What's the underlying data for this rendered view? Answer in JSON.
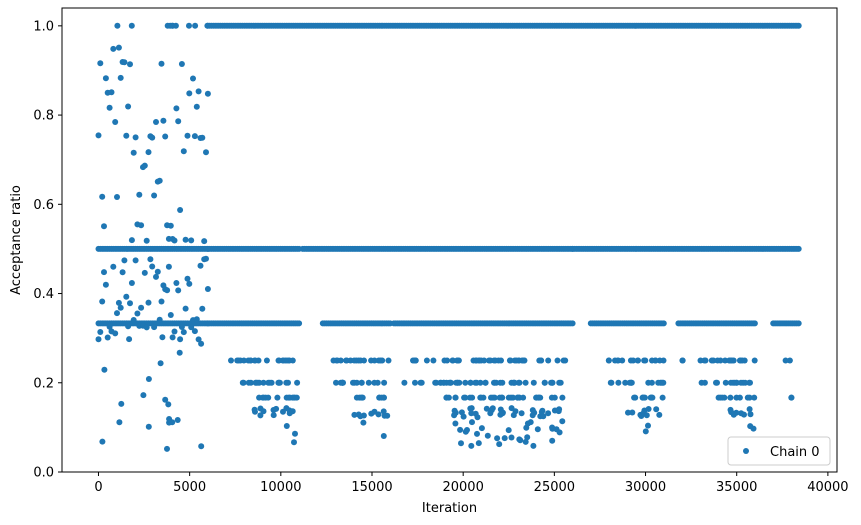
{
  "chart_data": {
    "type": "scatter",
    "xlabel": "Iteration",
    "ylabel": "Acceptance ratio",
    "xlim": [
      -2000,
      40500
    ],
    "ylim": [
      0,
      1.04
    ],
    "xticks": [
      0,
      5000,
      10000,
      15000,
      20000,
      25000,
      30000,
      35000,
      40000
    ],
    "xtick_labels": [
      "0",
      "5000",
      "10000",
      "15000",
      "20000",
      "25000",
      "30000",
      "35000",
      "40000"
    ],
    "yticks": [
      0.0,
      0.2,
      0.4,
      0.6,
      0.8,
      1.0
    ],
    "ytick_labels": [
      "0.0",
      "0.2",
      "0.4",
      "0.6",
      "0.8",
      "1.0"
    ],
    "grid": false,
    "legend_position": "lower-right",
    "color": "#1f77b4",
    "series": [
      {
        "name": "Chain 0",
        "marker": "circle",
        "x_range": [
          0,
          38400
        ],
        "segments": [
          {
            "x": [
              0,
              6000
            ],
            "y": [
              1.0
            ],
            "density": "sparse"
          },
          {
            "x": [
              6000,
              38400
            ],
            "y": [
              1.0
            ],
            "density": "dense"
          },
          {
            "x": [
              0,
              6000
            ],
            "y": [
              0.5
            ],
            "density": "dense"
          },
          {
            "x": [
              6000,
              11000
            ],
            "y": [
              0.5
            ],
            "density": "dense"
          },
          {
            "x": [
              11200,
              26000
            ],
            "y": [
              0.5
            ],
            "density": "dense"
          },
          {
            "x": [
              26000,
              38400
            ],
            "y": [
              0.5
            ],
            "density": "dense"
          },
          {
            "x": [
              0,
              6000
            ],
            "y": [
              0.333
            ],
            "density": "dense"
          },
          {
            "x": [
              6000,
              11000
            ],
            "y": [
              0.333
            ],
            "density": "dense"
          },
          {
            "x": [
              12300,
              16000
            ],
            "y": [
              0.333
            ],
            "density": "dense"
          },
          {
            "x": [
              16200,
              26000
            ],
            "y": [
              0.333
            ],
            "density": "dense"
          },
          {
            "x": [
              27000,
              31000
            ],
            "y": [
              0.333
            ],
            "density": "dense"
          },
          {
            "x": [
              31800,
              36000
            ],
            "y": [
              0.333
            ],
            "density": "dense"
          },
          {
            "x": [
              37000,
              38400
            ],
            "y": [
              0.333
            ],
            "density": "dense"
          },
          {
            "x": [
              6800,
              11000
            ],
            "y": [
              0.25
            ],
            "density": "medium"
          },
          {
            "x": [
              12500,
              16000
            ],
            "y": [
              0.25
            ],
            "density": "medium"
          },
          {
            "x": [
              17200,
              26000
            ],
            "y": [
              0.25
            ],
            "density": "medium"
          },
          {
            "x": [
              27700,
              31000
            ],
            "y": [
              0.25
            ],
            "density": "medium"
          },
          {
            "x": [
              32000,
              36000
            ],
            "y": [
              0.25
            ],
            "density": "medium"
          },
          {
            "x": [
              37000,
              38000
            ],
            "y": [
              0.25
            ],
            "density": "sparse"
          },
          {
            "x": [
              7500,
              11000
            ],
            "y": [
              0.2
            ],
            "density": "medium"
          },
          {
            "x": [
              13000,
              16000
            ],
            "y": [
              0.2
            ],
            "density": "medium"
          },
          {
            "x": [
              16500,
              25500
            ],
            "y": [
              0.2
            ],
            "density": "medium"
          },
          {
            "x": [
              28000,
              31000
            ],
            "y": [
              0.2
            ],
            "density": "medium"
          },
          {
            "x": [
              33000,
              36000
            ],
            "y": [
              0.2
            ],
            "density": "medium"
          },
          {
            "x": [
              8500,
              11000
            ],
            "y": [
              0.1667
            ],
            "density": "medium"
          },
          {
            "x": [
              14000,
              16000
            ],
            "y": [
              0.1667
            ],
            "density": "medium"
          },
          {
            "x": [
              18800,
              25500
            ],
            "y": [
              0.1667
            ],
            "density": "medium"
          },
          {
            "x": [
              28800,
              31000
            ],
            "y": [
              0.1667
            ],
            "density": "medium"
          },
          {
            "x": [
              34000,
              36000
            ],
            "y": [
              0.1667
            ],
            "density": "medium"
          },
          {
            "x": [
              38000,
              38000
            ],
            "y": [
              0.1667
            ],
            "density": "sparse"
          },
          {
            "x": [
              8500,
              11000
            ],
            "y": [
              0.125,
              0.143
            ],
            "density": "medium"
          },
          {
            "x": [
              14000,
              16000
            ],
            "y": [
              0.125,
              0.143
            ],
            "density": "medium"
          },
          {
            "x": [
              19000,
              25500
            ],
            "y": [
              0.125,
              0.143
            ],
            "density": "medium"
          },
          {
            "x": [
              29000,
              31000
            ],
            "y": [
              0.125,
              0.143
            ],
            "density": "medium"
          },
          {
            "x": [
              34500,
              36000
            ],
            "y": [
              0.125,
              0.143
            ],
            "density": "medium"
          },
          {
            "x": [
              9000,
              11000
            ],
            "y": [
              0.05,
              0.111
            ],
            "density": "sparse"
          },
          {
            "x": [
              14500,
              16000
            ],
            "y": [
              0.07,
              0.111
            ],
            "density": "sparse"
          },
          {
            "x": [
              19500,
              25500
            ],
            "y": [
              0.05,
              0.111
            ],
            "density": "medium"
          },
          {
            "x": [
              29500,
              31000
            ],
            "y": [
              0.08,
              0.111
            ],
            "density": "sparse"
          },
          {
            "x": [
              35000,
              36000
            ],
            "y": [
              0.09,
              0.111
            ],
            "density": "sparse"
          },
          {
            "x": [
              0,
              6000
            ],
            "y": [
              0.52,
              0.95
            ],
            "density": "dense"
          },
          {
            "x": [
              0,
              6000
            ],
            "y": [
              0.3,
              0.475
            ],
            "density": "dense"
          },
          {
            "x": [
              0,
              6000
            ],
            "y": [
              0.15,
              0.3
            ],
            "density": "sparse"
          },
          {
            "x": [
              0,
              6000
            ],
            "y": [
              0.05,
              0.15
            ],
            "density": "sparse"
          }
        ]
      }
    ]
  }
}
